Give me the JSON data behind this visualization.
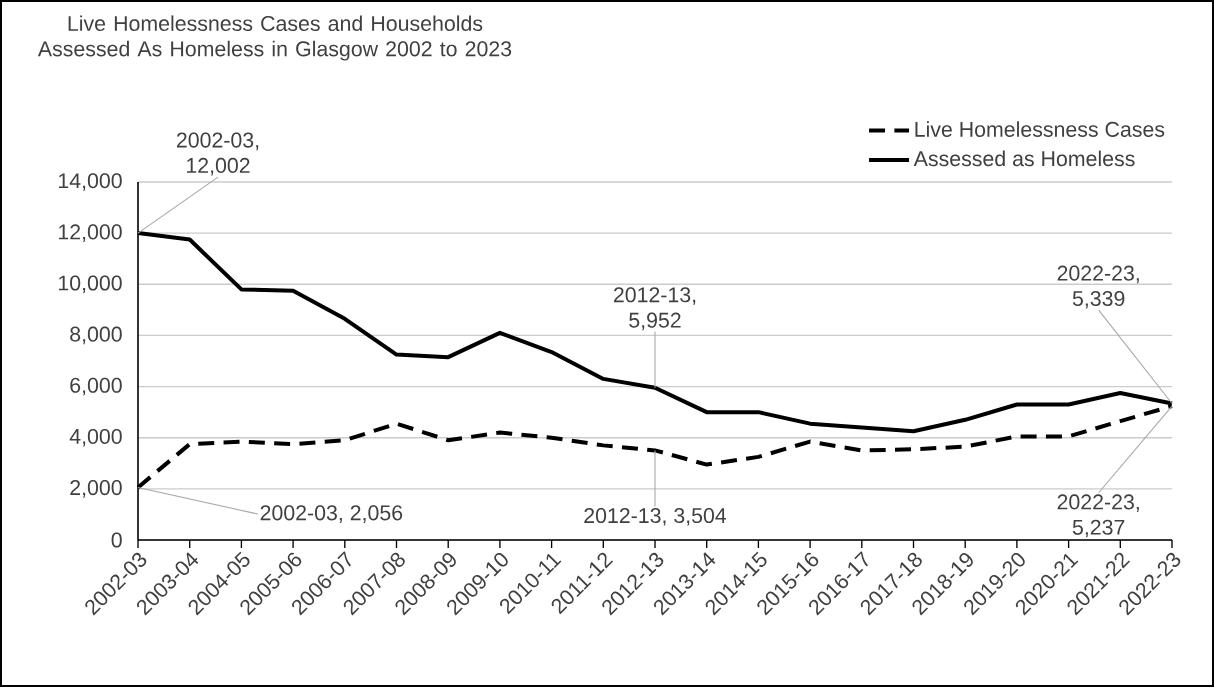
{
  "chart_data": {
    "type": "line",
    "title": "Live Homelessness Cases and Households Assessed As Homeless in Glasgow 2002 to 2023",
    "categories": [
      "2002-03",
      "2003-04",
      "2004-05",
      "2005-06",
      "2006-07",
      "2007-08",
      "2008-09",
      "2009-10",
      "2010-11",
      "2011-12",
      "2012-13",
      "2013-14",
      "2014-15",
      "2015-16",
      "2016-17",
      "2017-18",
      "2018-19",
      "2019-20",
      "2020-21",
      "2021-22",
      "2022-23"
    ],
    "series": [
      {
        "name": "Live Homelessness Cases",
        "color": "#000000",
        "line_style": "dashed",
        "values": [
          2056,
          3750,
          3850,
          3750,
          3900,
          4550,
          3900,
          4200,
          4000,
          3700,
          3504,
          2950,
          3250,
          3850,
          3500,
          3550,
          3650,
          4050,
          4050,
          4650,
          5237
        ]
      },
      {
        "name": "Assessed as Homeless",
        "color": "#000000",
        "line_style": "solid",
        "values": [
          12002,
          11750,
          9800,
          9750,
          8650,
          7250,
          7150,
          8100,
          7350,
          6300,
          5952,
          5000,
          5000,
          4550,
          4400,
          4250,
          4700,
          5300,
          5300,
          5750,
          5339
        ]
      }
    ],
    "ylim": [
      0,
      14000
    ],
    "yticks": [
      {
        "value": 0,
        "label": "0"
      },
      {
        "value": 2000,
        "label": "2,000"
      },
      {
        "value": 4000,
        "label": "4,000"
      },
      {
        "value": 6000,
        "label": "6,000"
      },
      {
        "value": 8000,
        "label": "8,000"
      },
      {
        "value": 10000,
        "label": "10,000"
      },
      {
        "value": 12000,
        "label": "12,000"
      },
      {
        "value": 14000,
        "label": "14,000"
      }
    ],
    "grid": "y",
    "legend": "top right",
    "marker": "none",
    "annotations": [
      {
        "text": "2002-03, 12,002",
        "x": "2002-03",
        "y": 12002
      },
      {
        "text": "2002-03, 2,056",
        "x": "2002-03",
        "y": 2056
      },
      {
        "text": "2012-13, 5,952",
        "x": "2012-13",
        "y": 5952
      },
      {
        "text": "2012-13, 3,504",
        "x": "2012-13",
        "y": 3504
      },
      {
        "text": "2022-23, 5,339",
        "x": "2022-23",
        "y": 5339
      },
      {
        "text": "2022-23, 5,237",
        "x": "2022-23",
        "y": 5237
      }
    ]
  }
}
